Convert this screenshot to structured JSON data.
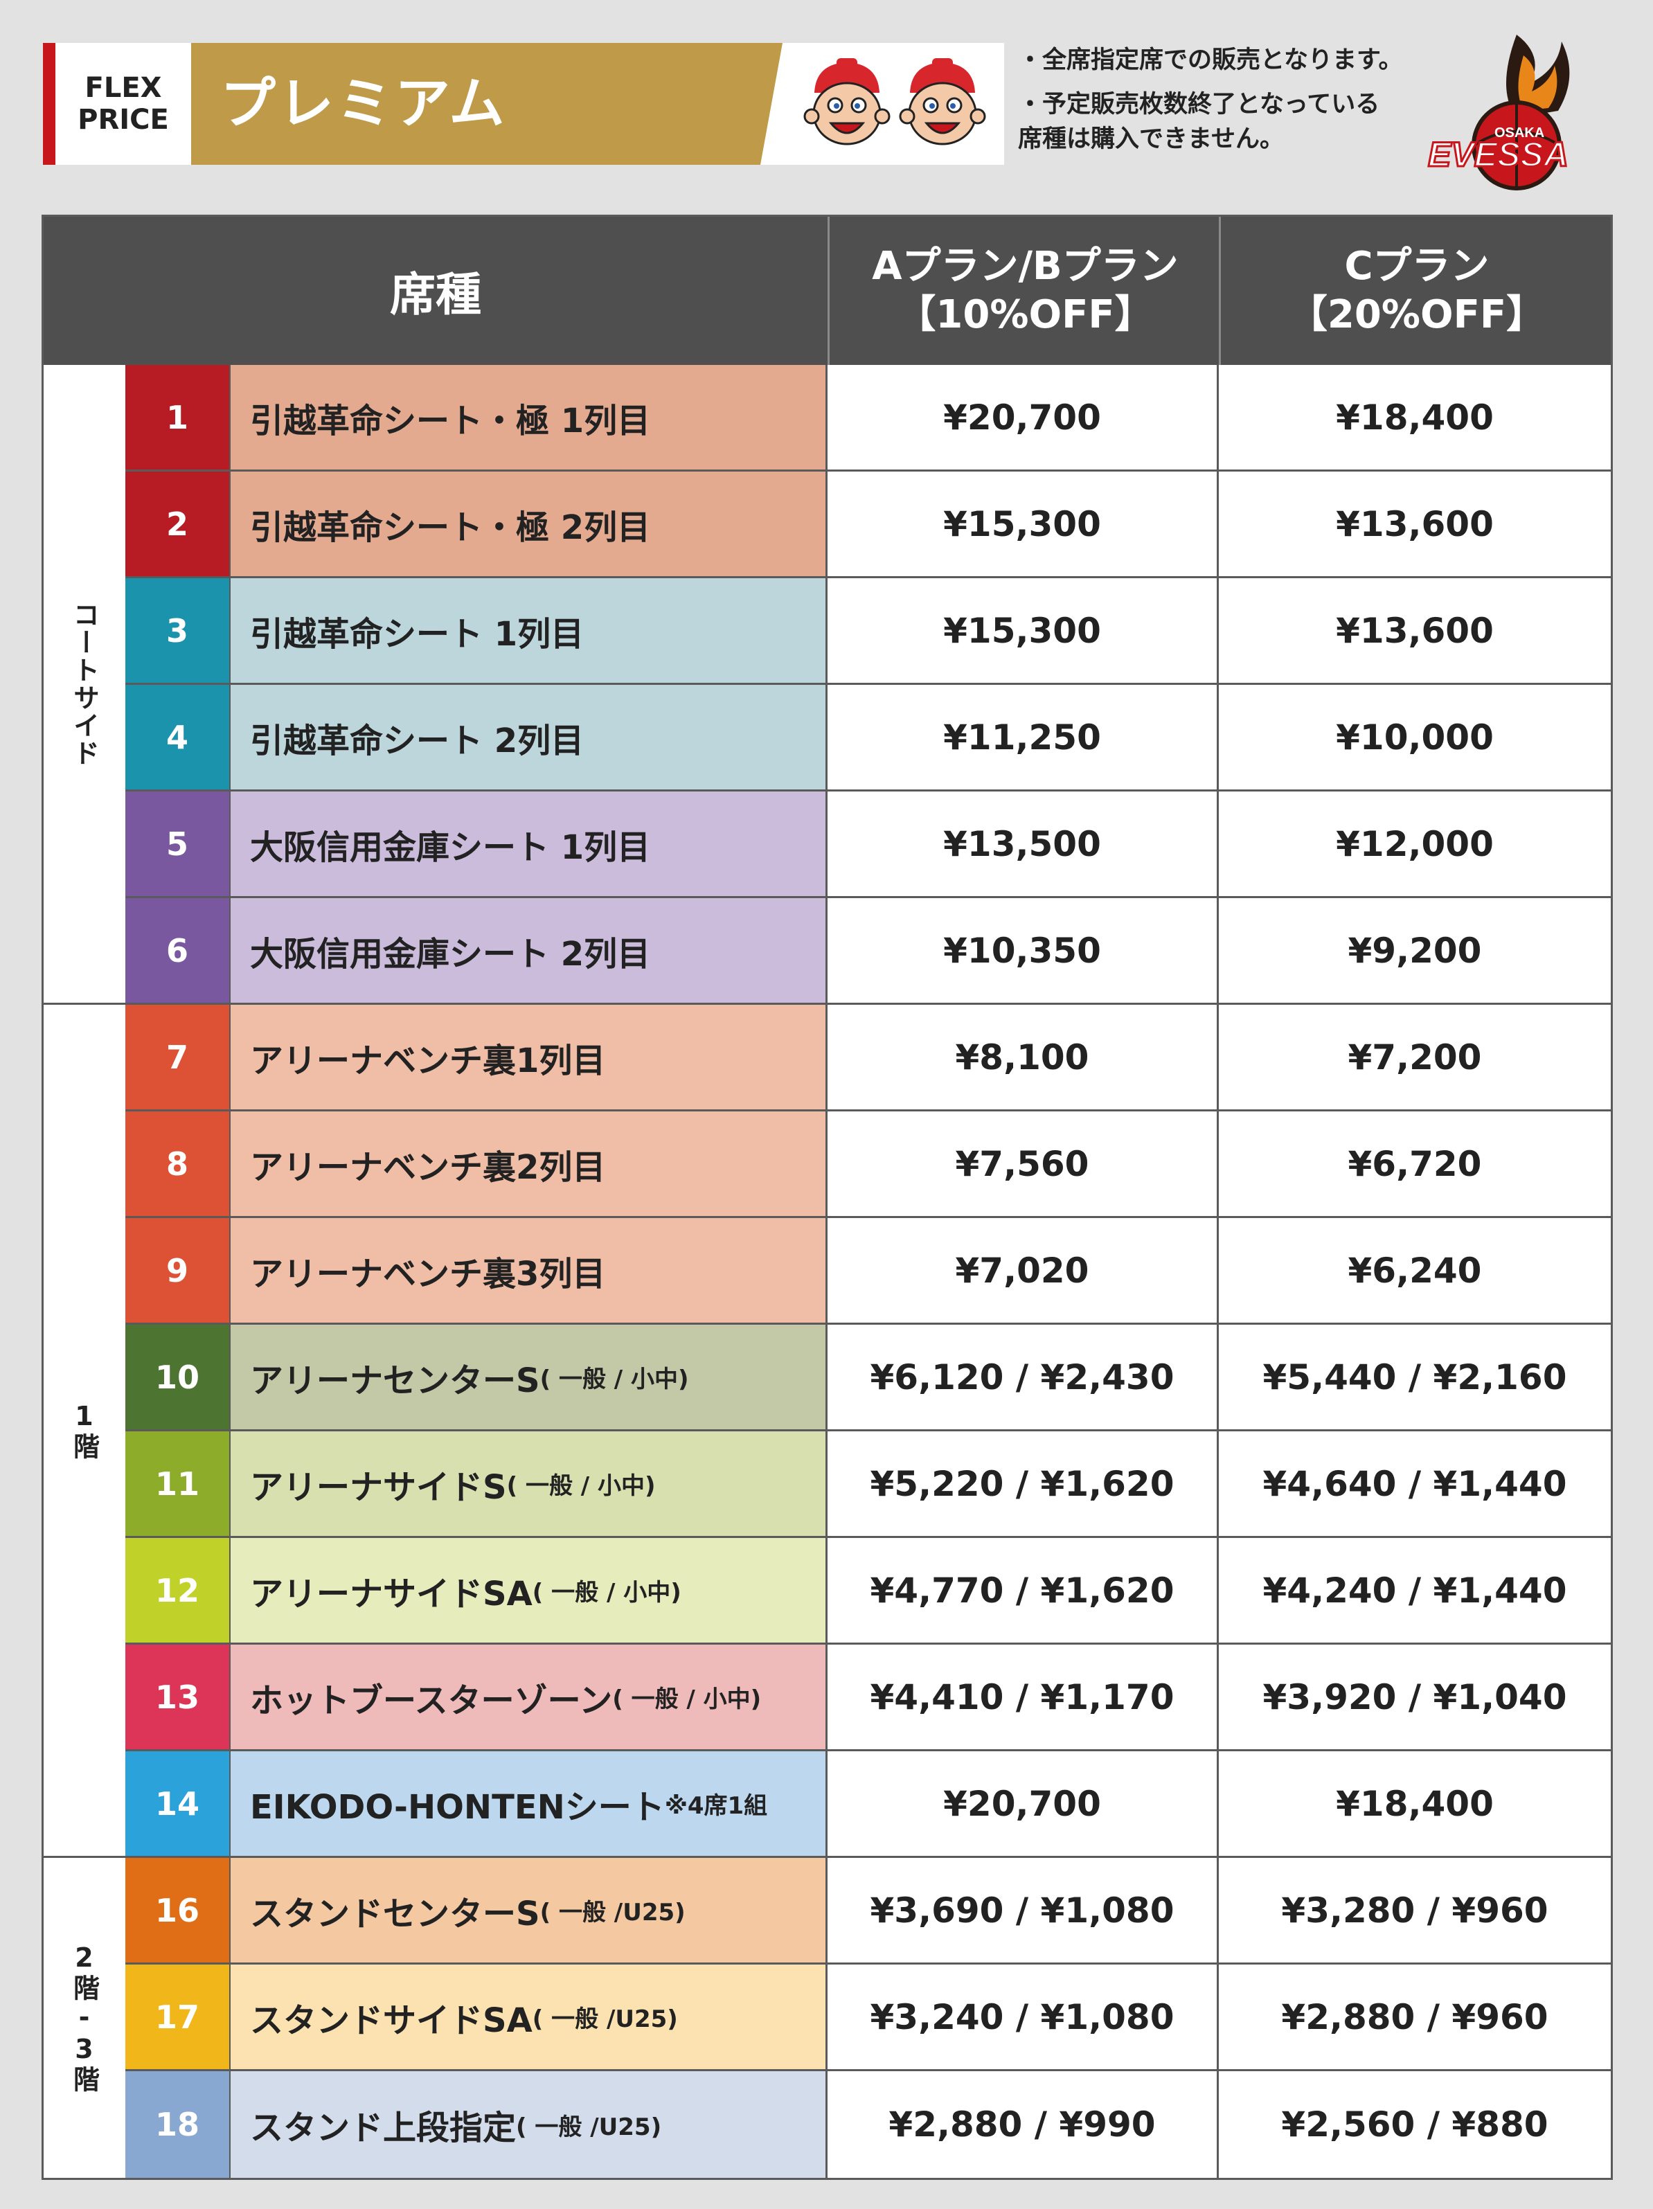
{
  "header": {
    "flex_line1": "FLEX",
    "flex_line2": "PRICE",
    "title": "プレミアム",
    "notes": [
      "・全席指定席での販売となります。",
      "・予定販売枚数終了となっている",
      "席種は購入できません。"
    ],
    "logo_text_top": "OSAKA",
    "logo_text_main": "EVESSA",
    "colors": {
      "red": "#c8161d",
      "gold": "#bf9a48",
      "header_dark": "#4f4f4f"
    }
  },
  "table": {
    "col_seat": "席種",
    "col_ab_line1": "Aプラン/Bプラン",
    "col_ab_line2": "【10%OFF】",
    "col_c_line1": "Cプラン",
    "col_c_line2": "【20%OFF】",
    "groups": [
      {
        "label": "コートサイド"
      },
      {
        "label": "1階"
      },
      {
        "label": "2階-3階"
      }
    ],
    "rows": [
      {
        "num": "1",
        "name": "引越革命シート・極 1列目",
        "sub": "",
        "ab": "¥20,700",
        "c": "¥18,400",
        "num_color": "#b71c24",
        "bg": "#e3aa90"
      },
      {
        "num": "2",
        "name": "引越革命シート・極 2列目",
        "sub": "",
        "ab": "¥15,300",
        "c": "¥13,600",
        "num_color": "#b71c24",
        "bg": "#e3aa90"
      },
      {
        "num": "3",
        "name": "引越革命シート 1列目",
        "sub": "",
        "ab": "¥15,300",
        "c": "¥13,600",
        "num_color": "#1c93ad",
        "bg": "#bcd6dc"
      },
      {
        "num": "4",
        "name": "引越革命シート 2列目",
        "sub": "",
        "ab": "¥11,250",
        "c": "¥10,000",
        "num_color": "#1c93ad",
        "bg": "#bcd6dc"
      },
      {
        "num": "5",
        "name": "大阪信用金庫シート 1列目",
        "sub": "",
        "ab": "¥13,500",
        "c": "¥12,000",
        "num_color": "#7a58a0",
        "bg": "#cbbcdc"
      },
      {
        "num": "6",
        "name": "大阪信用金庫シート 2列目",
        "sub": "",
        "ab": "¥10,350",
        "c": "¥9,200",
        "num_color": "#7a58a0",
        "bg": "#cbbcdc"
      },
      {
        "num": "7",
        "name": "アリーナベンチ裏1列目",
        "sub": "",
        "ab": "¥8,100",
        "c": "¥7,200",
        "num_color": "#dd5234",
        "bg": "#f0bea6"
      },
      {
        "num": "8",
        "name": "アリーナベンチ裏2列目",
        "sub": "",
        "ab": "¥7,560",
        "c": "¥6,720",
        "num_color": "#dd5234",
        "bg": "#f0bea6"
      },
      {
        "num": "9",
        "name": "アリーナベンチ裏3列目",
        "sub": "",
        "ab": "¥7,020",
        "c": "¥6,240",
        "num_color": "#dd5234",
        "bg": "#f0bea6"
      },
      {
        "num": "10",
        "name": "アリーナセンターS",
        "sub": "( 一般 / 小中)",
        "ab": "¥6,120 / ¥2,430",
        "c": "¥5,440 / ¥2,160",
        "num_color": "#4e7432",
        "bg": "#c3c9a6"
      },
      {
        "num": "11",
        "name": "アリーナサイドS",
        "sub": "( 一般 / 小中)",
        "ab": "¥5,220 / ¥1,620",
        "c": "¥4,640 / ¥1,440",
        "num_color": "#8dad2a",
        "bg": "#d8e0b0"
      },
      {
        "num": "12",
        "name": "アリーナサイドSA",
        "sub": "( 一般 / 小中)",
        "ab": "¥4,770 / ¥1,620",
        "c": "¥4,240 / ¥1,440",
        "num_color": "#c0d22a",
        "bg": "#e6ecbc"
      },
      {
        "num": "13",
        "name": "ホットブースターゾーン",
        "sub": "( 一般 / 小中)",
        "ab": "¥4,410 / ¥1,170",
        "c": "¥3,920 / ¥1,040",
        "num_color": "#dc3557",
        "bg": "#efbaba"
      },
      {
        "num": "14",
        "name": "EIKODO-HONTENシート",
        "sub": "※4席1組",
        "ab": "¥20,700",
        "c": "¥18,400",
        "num_color": "#2ba2d9",
        "bg": "#bcd7ee"
      },
      {
        "num": "16",
        "name": "スタンドセンターS",
        "sub": "( 一般 /U25)",
        "ab": "¥3,690 / ¥1,080",
        "c": "¥3,280 / ¥960",
        "num_color": "#e06e16",
        "bg": "#f4c8a0"
      },
      {
        "num": "17",
        "name": "スタンドサイドSA",
        "sub": "( 一般 /U25)",
        "ab": "¥3,240 / ¥1,080",
        "c": "¥2,880 / ¥960",
        "num_color": "#f0b61a",
        "bg": "#fbe2b0"
      },
      {
        "num": "18",
        "name": "スタンド上段指定",
        "sub": "( 一般 /U25)",
        "ab": "¥2,880 / ¥990",
        "c": "¥2,560 / ¥880",
        "num_color": "#88a8d2",
        "bg": "#d2dcea"
      }
    ]
  }
}
